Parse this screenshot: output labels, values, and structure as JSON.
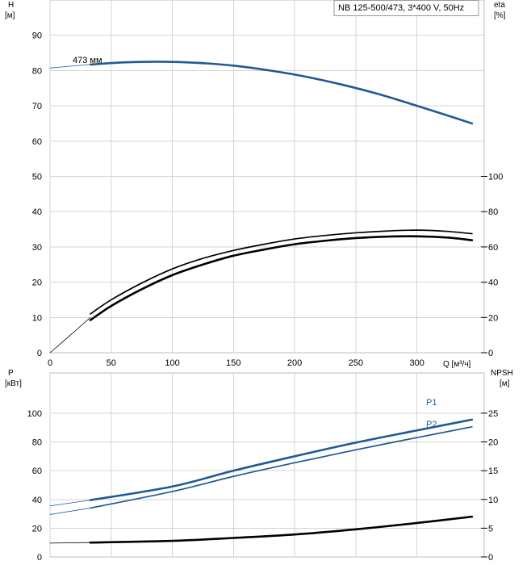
{
  "chart_data": [
    {
      "type": "line",
      "title": "NB 125-500/473, 3*400 V, 50Hz",
      "x_unit_label": "Q [м³/ч]",
      "xlim": [
        0,
        355
      ],
      "xticks": [
        "0",
        "50",
        "100",
        "150",
        "200",
        "250",
        "300"
      ],
      "left_axis": {
        "label": "H",
        "unit": "[м]",
        "ylim": [
          0,
          100
        ],
        "ticks": [
          "0",
          "10",
          "20",
          "30",
          "40",
          "50",
          "60",
          "70",
          "80",
          "90"
        ]
      },
      "right_axis": {
        "label": "eta",
        "unit": "[%]",
        "ylim": [
          0,
          200
        ],
        "ticks": [
          "0",
          "20",
          "40",
          "60",
          "80",
          "100"
        ]
      },
      "grid": true,
      "series": [
        {
          "name": "473 мм",
          "axis": "left",
          "color": "#1f5a96",
          "style": "thick",
          "x": [
            33,
            60,
            90,
            120,
            150,
            180,
            210,
            240,
            270,
            300,
            330,
            345
          ],
          "y": [
            81.7,
            82.3,
            82.5,
            82.2,
            81.4,
            80.0,
            78.2,
            75.9,
            73.2,
            70.0,
            66.7,
            65.0
          ]
        },
        {
          "name": "",
          "axis": "left",
          "color": "#1f5a96",
          "style": "thin",
          "x": [
            0,
            15,
            33
          ],
          "y": [
            80.7,
            81.2,
            81.7
          ]
        },
        {
          "name": "",
          "axis": "right",
          "color": "#000000",
          "style": "medium",
          "x": [
            33,
            50,
            75,
            100,
            125,
            150,
            175,
            200,
            225,
            250,
            275,
            300,
            325,
            345
          ],
          "y": [
            22,
            30,
            39.5,
            47.5,
            53.5,
            58,
            61.5,
            64.5,
            66.5,
            68,
            69,
            69.5,
            68.8,
            67.5
          ]
        },
        {
          "name": "",
          "axis": "right",
          "color": "#000000",
          "style": "thick",
          "x": [
            33,
            50,
            75,
            100,
            125,
            150,
            175,
            200,
            225,
            250,
            275,
            300,
            325,
            345
          ],
          "y": [
            18.5,
            26.5,
            36,
            44,
            50,
            55,
            58.5,
            61.5,
            63.5,
            65,
            65.8,
            66,
            65.3,
            63.8
          ]
        },
        {
          "name": "",
          "axis": "right",
          "color": "#000000",
          "style": "thin",
          "x": [
            0,
            15,
            33
          ],
          "y": [
            0,
            9,
            20
          ]
        }
      ]
    },
    {
      "type": "line",
      "xlim": [
        0,
        355
      ],
      "left_axis": {
        "label": "P",
        "unit": "[кВт]",
        "ylim": [
          0,
          128
        ],
        "ticks": [
          "0",
          "20",
          "40",
          "60",
          "80",
          "100"
        ]
      },
      "right_axis": {
        "label": "NPSH",
        "unit": "[м]",
        "ylim": [
          0,
          32
        ],
        "ticks": [
          "0",
          "5",
          "10",
          "15",
          "20",
          "25"
        ]
      },
      "grid": true,
      "series": [
        {
          "name": "P1",
          "axis": "left",
          "color": "#1f5a96",
          "style": "thick",
          "x": [
            33,
            100,
            150,
            200,
            250,
            300,
            345
          ],
          "y": [
            39.5,
            49,
            60,
            70,
            79.5,
            88,
            95.5
          ]
        },
        {
          "name": "P2",
          "axis": "left",
          "color": "#1f5a96",
          "style": "medium",
          "x": [
            33,
            100,
            150,
            200,
            250,
            300,
            345
          ],
          "y": [
            34,
            45.5,
            56,
            65.5,
            74.5,
            83,
            90.5
          ]
        },
        {
          "name": "",
          "axis": "left",
          "color": "#1f5a96",
          "style": "thin",
          "x": [
            0,
            33
          ],
          "y": [
            35.5,
            39.5
          ]
        },
        {
          "name": "",
          "axis": "left",
          "color": "#1f5a96",
          "style": "thin",
          "x": [
            0,
            33
          ],
          "y": [
            29.5,
            34
          ]
        },
        {
          "name": "",
          "axis": "right",
          "color": "#000000",
          "style": "thick",
          "x": [
            33,
            100,
            150,
            200,
            250,
            300,
            345
          ],
          "y": [
            2.5,
            2.8,
            3.3,
            3.9,
            4.8,
            5.9,
            7
          ]
        },
        {
          "name": "",
          "axis": "right",
          "color": "#000000",
          "style": "thin",
          "x": [
            0,
            33
          ],
          "y": [
            2.4,
            2.5
          ]
        }
      ]
    }
  ]
}
